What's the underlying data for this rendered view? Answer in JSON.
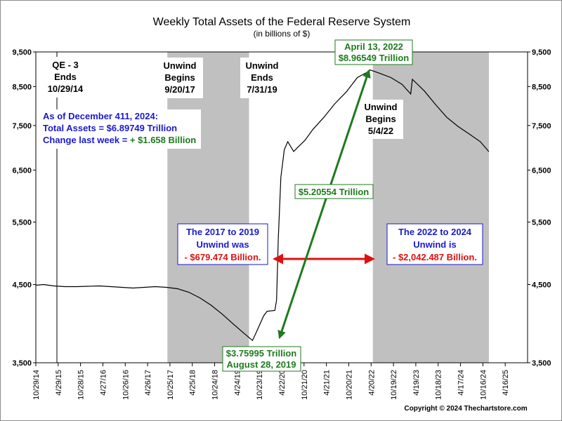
{
  "chart_data": {
    "type": "line",
    "title": "Weekly Total Assets of the Federal Reserve System",
    "subtitle": "(in billions of $)",
    "xlabel": "",
    "ylabel": "",
    "y_scale": "log",
    "ylim": [
      3500,
      9500
    ],
    "y_ticks": [
      3500,
      4500,
      5500,
      6500,
      7500,
      8500,
      9500
    ],
    "y_tick_labels": [
      "3,500",
      "4,500",
      "5,500",
      "6,500",
      "7,500",
      "8,500",
      "9,500"
    ],
    "x_range": [
      "2014-10-29",
      "2025-10-15"
    ],
    "x_tick_labels": [
      "10/29/14",
      "4/29/15",
      "10/28/15",
      "4/27/16",
      "10/26/16",
      "4/26/17",
      "10/25/17",
      "4/25/18",
      "10/24/18",
      "4/24/19",
      "10/23/19",
      "4/22/20",
      "10/21/20",
      "4/21/21",
      "10/20/21",
      "4/20/22",
      "10/19/22",
      "4/19/23",
      "10/18/23",
      "4/17/24",
      "10/16/24",
      "4/16/25"
    ],
    "x_ticks": [
      "2014-10-29",
      "2015-04-29",
      "2015-10-28",
      "2016-04-27",
      "2016-10-26",
      "2017-04-26",
      "2017-10-25",
      "2018-04-25",
      "2018-10-24",
      "2019-04-24",
      "2019-10-23",
      "2020-04-22",
      "2020-10-21",
      "2021-04-21",
      "2021-10-20",
      "2022-04-20",
      "2022-10-19",
      "2023-04-19",
      "2023-10-18",
      "2024-04-17",
      "2024-10-16",
      "2025-04-16"
    ],
    "shaded_periods": [
      {
        "start": "2017-10-04",
        "end": "2019-07-31"
      },
      {
        "start": "2022-05-04",
        "end": "2024-12-04"
      }
    ],
    "series": [
      {
        "color": "#000000",
        "x": [
          "2014-10-29",
          "2014-12-31",
          "2015-03-25",
          "2015-06-24",
          "2015-09-30",
          "2015-12-30",
          "2016-03-30",
          "2016-06-29",
          "2016-09-28",
          "2016-12-28",
          "2017-03-29",
          "2017-06-28",
          "2017-09-27",
          "2017-12-27",
          "2018-03-28",
          "2018-06-27",
          "2018-09-26",
          "2018-12-26",
          "2019-03-27",
          "2019-06-26",
          "2019-08-28",
          "2019-09-25",
          "2019-11-27",
          "2019-12-25",
          "2020-02-26",
          "2020-03-11",
          "2020-03-25",
          "2020-04-15",
          "2020-05-13",
          "2020-06-10",
          "2020-07-29",
          "2020-08-26",
          "2020-10-28",
          "2020-12-30",
          "2021-03-31",
          "2021-06-30",
          "2021-09-29",
          "2021-12-29",
          "2022-03-30",
          "2022-04-13",
          "2022-06-29",
          "2022-09-28",
          "2022-12-28",
          "2023-03-08",
          "2023-03-22",
          "2023-06-28",
          "2023-09-27",
          "2023-12-27",
          "2024-03-27",
          "2024-06-26",
          "2024-09-25",
          "2024-12-04"
        ],
        "values": [
          4490,
          4500,
          4480,
          4470,
          4470,
          4475,
          4480,
          4470,
          4460,
          4450,
          4460,
          4470,
          4460,
          4440,
          4390,
          4310,
          4210,
          4090,
          3960,
          3840,
          3760,
          3850,
          4070,
          4130,
          4140,
          4280,
          5200,
          6350,
          6940,
          7120,
          6900,
          6980,
          7150,
          7400,
          7700,
          8050,
          8350,
          8750,
          8920,
          8965,
          8870,
          8750,
          8560,
          8300,
          8700,
          8380,
          8020,
          7700,
          7480,
          7300,
          7120,
          6897
        ]
      }
    ],
    "annotations": {
      "qe3": [
        "QE - 3",
        "Ends",
        "10/29/14"
      ],
      "unwind_begins_2017": [
        "Unwind",
        "Begins",
        "9/20/17"
      ],
      "unwind_ends_2019": [
        "Unwind",
        "Ends",
        "7/31/19"
      ],
      "unwind_begins_2022": [
        "Unwind",
        "Begins",
        "5/4/22"
      ],
      "peak": [
        "April 13, 2022",
        "$8.96549 Trillion"
      ],
      "trough": [
        "$3.75995 Trillion",
        "August 28, 2019"
      ],
      "increase": "$5.20554 Trillion",
      "as_of": [
        "As of December 411, 2024:",
        "Total Assets =  $6.89749 Trillion",
        "Change last week = ",
        "+ $1.658 Billion"
      ],
      "unwind_2017_2019": [
        "The 2017 to 2019",
        "Unwind was",
        "- $679.474 Billion."
      ],
      "unwind_2022_2024": [
        "The 2022 to 2024",
        "Unwind is",
        "- $2,042.487 Billion."
      ]
    },
    "copyright": "Copyright © 2024 Thechartstore.com",
    "grid": false,
    "legend": "none",
    "colors": {
      "line": "#000000",
      "shade": "#c0c0c0",
      "green": "#1f7a1f",
      "red": "#e01010",
      "blue": "#1a1acc"
    }
  }
}
